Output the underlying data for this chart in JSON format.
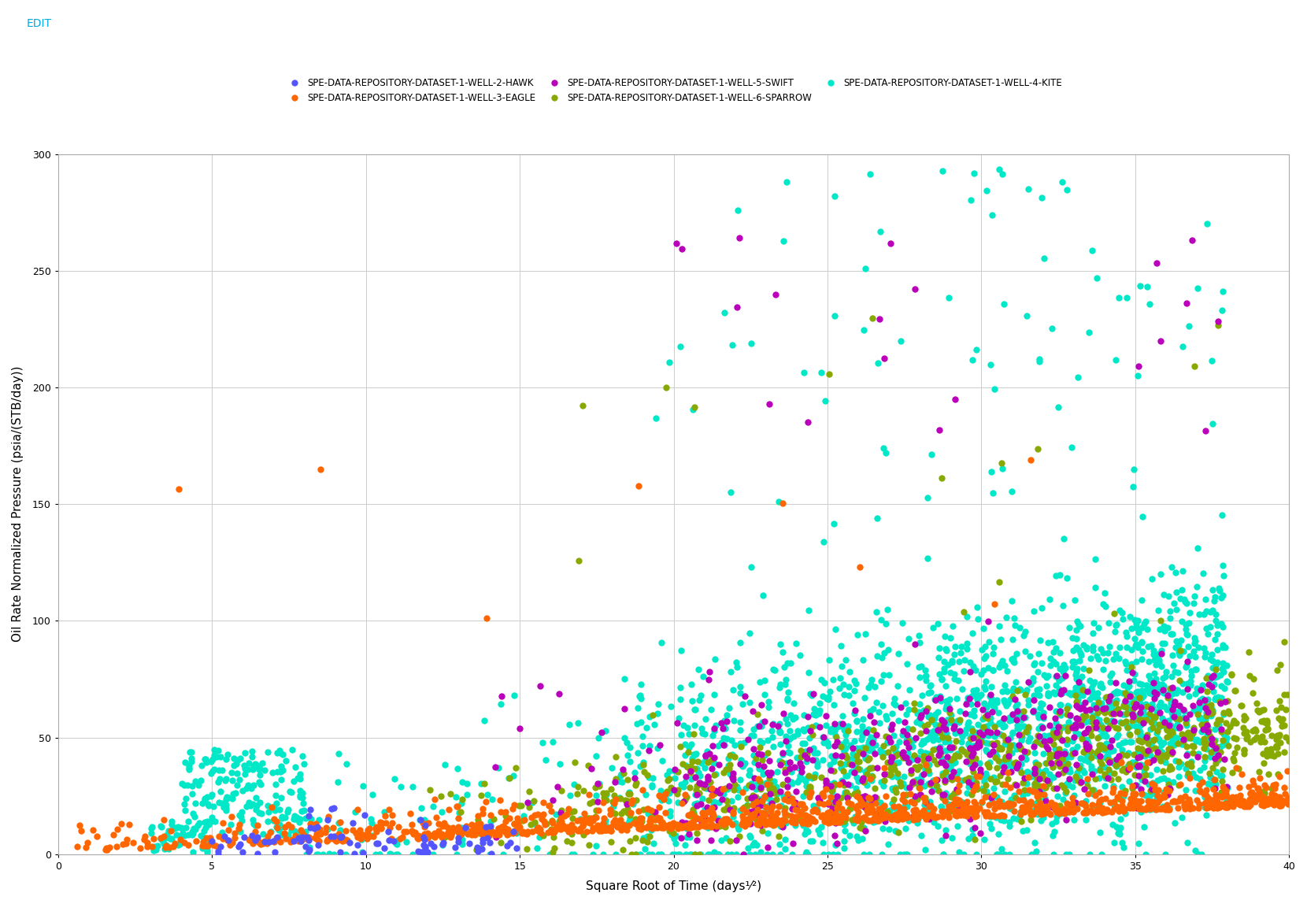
{
  "xlabel": "Square Root of Time (days¹⁄²)",
  "ylabel": "Oil Rate Normalized Pressure (psia/(STB/day))",
  "xlim": [
    0,
    40
  ],
  "ylim": [
    0,
    300
  ],
  "xticks": [
    0,
    5,
    10,
    15,
    20,
    25,
    30,
    35,
    40
  ],
  "yticks": [
    0,
    50,
    100,
    150,
    200,
    250,
    300
  ],
  "legend_labels": [
    "SPE-DATA-REPOSITORY-DATASET-1-WELL-2-HAWK",
    "SPE-DATA-REPOSITORY-DATASET-1-WELL-3-EAGLE",
    "SPE-DATA-REPOSITORY-DATASET-1-WELL-5-SWIFT",
    "SPE-DATA-REPOSITORY-DATASET-1-WELL-6-SPARROW",
    "SPE-DATA-REPOSITORY-DATASET-1-WELL-4-KITE"
  ],
  "colors": {
    "HAWK": "#5555ff",
    "EAGLE": "#ff6600",
    "SWIFT": "#bb00bb",
    "SPARROW": "#88aa00",
    "KITE": "#00e8c8"
  },
  "marker_size": 6,
  "background_color": "#ffffff",
  "grid_color": "#cccccc",
  "edit_text": "EDIT",
  "edit_color": "#00aadd"
}
